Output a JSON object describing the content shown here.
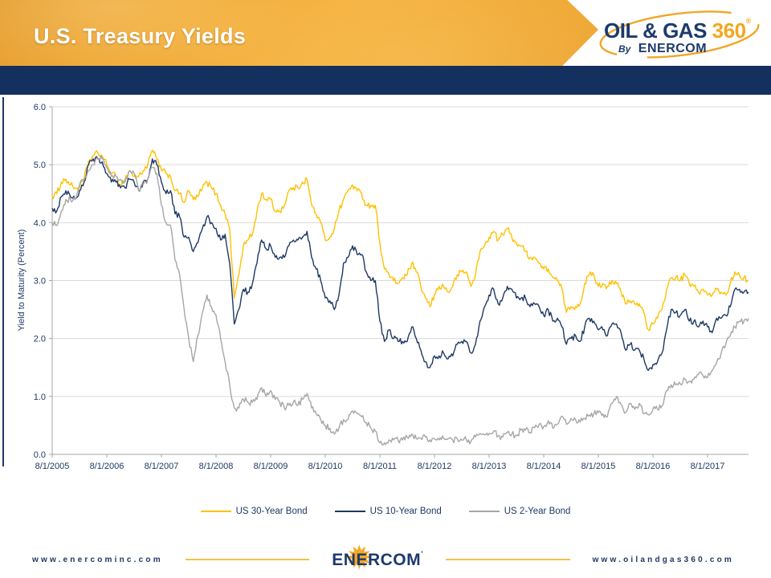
{
  "header": {
    "title": "U.S. Treasury Yields"
  },
  "brand_logo": {
    "line1_left": "OIL & GAS",
    "line1_right": "360",
    "registered_mark": "®",
    "by": "By",
    "company": "ENERCOM"
  },
  "icons": {
    "starburst_glyph": "✹"
  },
  "colors": {
    "header_orange": "#f0a936",
    "navy_band": "#13305e",
    "navy_text": "#1f3864",
    "logo_gold": "#f2a71f",
    "footer_gold_rule": "#f6c044",
    "gridline": "#d9d9d9",
    "axis": "#a6a6a6"
  },
  "footer": {
    "left_url": "www.enercominc.com",
    "company": "ENERCOM",
    "trademark": "’",
    "right_url": "www.oilandgas360.com"
  },
  "chart_data": {
    "type": "line",
    "title": "",
    "xlabel": "",
    "ylabel": "Yield to Maturity (Percent)",
    "ylim": [
      0,
      6
    ],
    "ytick_labels": [
      "0.0",
      "1.0",
      "2.0",
      "3.0",
      "4.0",
      "5.0",
      "6.0"
    ],
    "x_tick_labels": [
      "8/1/2005",
      "8/1/2006",
      "8/1/2007",
      "8/1/2008",
      "8/1/2009",
      "8/1/2010",
      "8/1/2011",
      "8/1/2012",
      "8/1/2013",
      "8/1/2014",
      "8/1/2015",
      "8/1/2016",
      "8/1/2017"
    ],
    "x_frequency": "monthly",
    "x_start": "8/2005",
    "x_end": "5/2018",
    "grid": true,
    "legend_position": "bottom",
    "series": [
      {
        "name": "US 30-Year Bond",
        "color": "#FFC000",
        "values": [
          4.45,
          4.5,
          4.7,
          4.75,
          4.65,
          4.6,
          4.6,
          4.75,
          5.05,
          5.15,
          5.2,
          5.15,
          5.0,
          4.85,
          4.8,
          4.65,
          4.75,
          4.9,
          4.8,
          4.8,
          4.9,
          5.0,
          5.25,
          5.1,
          4.9,
          4.85,
          4.8,
          4.55,
          4.5,
          4.35,
          4.55,
          4.4,
          4.45,
          4.6,
          4.7,
          4.6,
          4.5,
          4.3,
          4.15,
          3.9,
          2.7,
          3.1,
          3.6,
          3.7,
          3.8,
          4.2,
          4.5,
          4.4,
          4.4,
          4.2,
          4.2,
          4.3,
          4.55,
          4.6,
          4.6,
          4.7,
          4.75,
          4.3,
          4.15,
          4.0,
          3.7,
          3.75,
          3.9,
          4.2,
          4.4,
          4.55,
          4.65,
          4.55,
          4.5,
          4.3,
          4.3,
          4.3,
          3.65,
          3.2,
          3.1,
          3.0,
          2.95,
          3.05,
          3.1,
          3.3,
          3.15,
          2.9,
          2.7,
          2.55,
          2.75,
          2.9,
          2.9,
          2.8,
          2.9,
          3.1,
          3.15,
          3.15,
          2.9,
          3.1,
          3.5,
          3.6,
          3.75,
          3.85,
          3.7,
          3.8,
          3.9,
          3.75,
          3.65,
          3.6,
          3.5,
          3.4,
          3.4,
          3.3,
          3.2,
          3.2,
          3.05,
          3.0,
          2.85,
          2.45,
          2.55,
          2.55,
          2.6,
          2.95,
          3.1,
          3.1,
          2.9,
          2.95,
          2.9,
          3.0,
          2.95,
          2.8,
          2.6,
          2.65,
          2.6,
          2.6,
          2.45,
          2.15,
          2.25,
          2.35,
          2.5,
          2.85,
          3.05,
          3.05,
          3.0,
          3.1,
          2.95,
          2.9,
          2.8,
          2.85,
          2.75,
          2.75,
          2.85,
          2.8,
          2.75,
          2.95,
          3.15,
          3.1,
          3.05,
          3.0
        ]
      },
      {
        "name": "US 10-Year Bond",
        "color": "#1F3864",
        "values": [
          4.25,
          4.2,
          4.45,
          4.55,
          4.45,
          4.4,
          4.55,
          4.7,
          5.0,
          5.1,
          5.1,
          5.05,
          4.85,
          4.7,
          4.7,
          4.6,
          4.6,
          4.75,
          4.7,
          4.55,
          4.7,
          4.75,
          5.1,
          5.0,
          4.7,
          4.5,
          4.55,
          4.15,
          4.1,
          3.75,
          3.75,
          3.5,
          3.65,
          3.9,
          4.1,
          4.0,
          3.9,
          3.7,
          3.8,
          3.3,
          2.25,
          2.5,
          2.85,
          2.8,
          2.95,
          3.3,
          3.7,
          3.55,
          3.6,
          3.4,
          3.4,
          3.4,
          3.6,
          3.7,
          3.7,
          3.75,
          3.85,
          3.4,
          3.2,
          3.0,
          2.7,
          2.65,
          2.5,
          2.75,
          3.3,
          3.4,
          3.6,
          3.45,
          3.45,
          3.15,
          3.0,
          3.0,
          2.3,
          1.95,
          2.15,
          2.0,
          1.95,
          1.95,
          1.95,
          2.2,
          2.0,
          1.8,
          1.6,
          1.5,
          1.7,
          1.7,
          1.75,
          1.65,
          1.7,
          1.9,
          1.95,
          1.95,
          1.75,
          1.9,
          2.3,
          2.55,
          2.75,
          2.85,
          2.6,
          2.7,
          2.9,
          2.85,
          2.7,
          2.7,
          2.7,
          2.55,
          2.6,
          2.55,
          2.4,
          2.5,
          2.3,
          2.35,
          2.2,
          1.9,
          2.0,
          2.05,
          1.95,
          2.2,
          2.35,
          2.3,
          2.15,
          2.15,
          2.05,
          2.25,
          2.25,
          2.1,
          1.8,
          1.9,
          1.8,
          1.8,
          1.65,
          1.45,
          1.55,
          1.6,
          1.75,
          2.15,
          2.5,
          2.45,
          2.4,
          2.5,
          2.3,
          2.3,
          2.2,
          2.3,
          2.2,
          2.1,
          2.35,
          2.35,
          2.4,
          2.55,
          2.85,
          2.85,
          2.8,
          2.8
        ]
      },
      {
        "name": "US 2-Year Bond",
        "color": "#A6A6A6",
        "values": [
          4.0,
          3.95,
          4.2,
          4.4,
          4.4,
          4.4,
          4.65,
          4.75,
          4.9,
          5.0,
          5.1,
          5.1,
          4.95,
          4.8,
          4.8,
          4.75,
          4.7,
          4.9,
          4.85,
          4.55,
          4.65,
          4.75,
          4.95,
          4.85,
          4.3,
          4.0,
          3.95,
          3.35,
          3.1,
          2.5,
          2.0,
          1.6,
          2.05,
          2.45,
          2.75,
          2.55,
          2.4,
          2.0,
          1.6,
          1.2,
          0.8,
          0.8,
          0.95,
          0.9,
          0.9,
          0.95,
          1.15,
          1.0,
          1.1,
          0.95,
          0.9,
          0.8,
          0.85,
          0.9,
          0.85,
          0.95,
          1.05,
          0.8,
          0.7,
          0.6,
          0.5,
          0.45,
          0.35,
          0.45,
          0.6,
          0.6,
          0.75,
          0.7,
          0.65,
          0.55,
          0.45,
          0.4,
          0.2,
          0.2,
          0.25,
          0.25,
          0.25,
          0.25,
          0.3,
          0.35,
          0.27,
          0.28,
          0.3,
          0.25,
          0.27,
          0.25,
          0.28,
          0.27,
          0.25,
          0.27,
          0.25,
          0.25,
          0.22,
          0.3,
          0.36,
          0.34,
          0.36,
          0.4,
          0.32,
          0.3,
          0.38,
          0.35,
          0.32,
          0.42,
          0.42,
          0.38,
          0.46,
          0.52,
          0.48,
          0.58,
          0.45,
          0.52,
          0.66,
          0.52,
          0.62,
          0.6,
          0.56,
          0.62,
          0.68,
          0.7,
          0.72,
          0.7,
          0.65,
          0.88,
          1.0,
          0.86,
          0.72,
          0.88,
          0.78,
          0.88,
          0.7,
          0.68,
          0.78,
          0.78,
          0.84,
          1.1,
          1.2,
          1.2,
          1.22,
          1.3,
          1.26,
          1.3,
          1.38,
          1.36,
          1.33,
          1.45,
          1.58,
          1.75,
          1.9,
          2.05,
          2.2,
          2.3,
          2.3,
          2.35
        ]
      }
    ]
  }
}
